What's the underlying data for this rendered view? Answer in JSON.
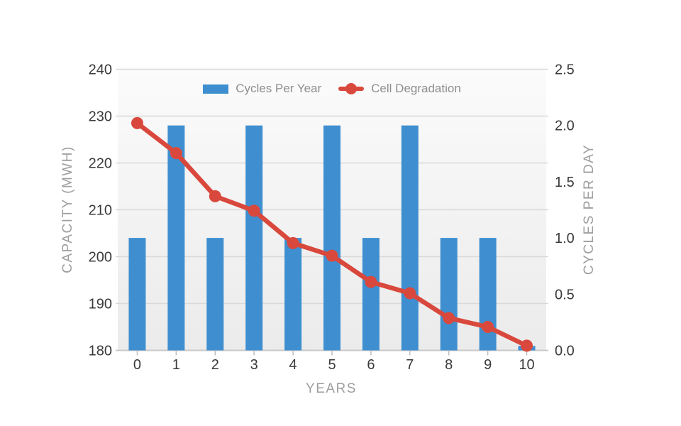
{
  "chart_data": {
    "type": "combo-bar-line",
    "title": "",
    "categories": [
      "0",
      "1",
      "2",
      "3",
      "4",
      "5",
      "6",
      "7",
      "8",
      "9",
      "10"
    ],
    "xlabel": "YEARS",
    "series": [
      {
        "name": "Cycles Per Year",
        "type": "bar",
        "axis": "right",
        "unit": "cycles per day",
        "color": "#3F8FD0",
        "values": [
          1.0,
          2.0,
          1.0,
          2.0,
          1.0,
          2.0,
          1.0,
          2.0,
          1.0,
          1.0,
          0.04
        ]
      },
      {
        "name": "Cell Degradation",
        "type": "line",
        "axis": "left",
        "unit": "MWH",
        "color": "#D9483C",
        "values": [
          228.5,
          222.1,
          212.9,
          209.8,
          202.9,
          200.2,
          194.6,
          192.2,
          186.9,
          185.0,
          181.0
        ]
      }
    ],
    "left_axis": {
      "label": "CAPACITY (MWH)",
      "min": 180,
      "max": 240,
      "ticks": [
        "240",
        "230",
        "220",
        "210",
        "200",
        "190",
        "180"
      ],
      "grid": true
    },
    "right_axis": {
      "label": "CYCLES PER DAY",
      "min": 0,
      "max": 2.5,
      "ticks": [
        "2.5",
        "2.0",
        "1.5",
        "1.0",
        "0.5",
        "0.0"
      ],
      "grid": false
    },
    "legend": {
      "position": "top-center",
      "items": [
        {
          "label": "Cycles Per Year",
          "type": "bar",
          "color": "#3F8FD0"
        },
        {
          "label": "Cell Degradation",
          "type": "line",
          "color": "#D9483C"
        }
      ]
    },
    "style": {
      "bar_color": "#3F8FD0",
      "line_color": "#D9483C",
      "grid_color": "#D9D9D9",
      "baseline_color": "#C8C8C8",
      "tick_mark_color": "#BDBDBD",
      "tick_text_color": "#3A3A3A",
      "axis_title_color": "#9E9E9E",
      "legend_text_color": "#8E8E8E",
      "plot_bg_top": "#FBFBFB",
      "plot_bg_bottom": "#EBEBEB"
    }
  }
}
